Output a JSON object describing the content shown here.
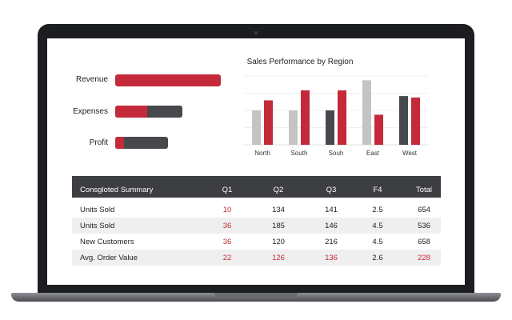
{
  "colors": {
    "accent": "#c52a3a",
    "dark": "#47484c",
    "light": "#c4c4c4",
    "header_bg": "#3d3e42"
  },
  "bar_metrics": [
    {
      "label": "Revenue",
      "red": 1.0,
      "dark": 0.0
    },
    {
      "label": "Expenses",
      "red": 0.48,
      "dark": 0.52
    },
    {
      "label": "Profit",
      "red": 0.17,
      "dark": 0.83
    }
  ],
  "chart_data": {
    "type": "bar",
    "title": "Sales Performance by Region",
    "categories": [
      "North",
      "South",
      "Souh",
      "East",
      "West"
    ],
    "series": [
      {
        "color": "#c4c4c4",
        "values": [
          24,
          24,
          null,
          45,
          null
        ]
      },
      {
        "color": "#47484c",
        "values": [
          null,
          null,
          24,
          null,
          34
        ]
      },
      {
        "color": "#c52a3a",
        "values": [
          31,
          38,
          38,
          21,
          33
        ]
      }
    ],
    "ylim": [
      0,
      48
    ]
  },
  "table": {
    "title": "Consgloted Summary",
    "columns": [
      "Q1",
      "Q2",
      "Q3",
      "F4",
      "Total"
    ],
    "rows": [
      {
        "label": "Units Sold",
        "values": [
          "10",
          "134",
          "141",
          "2.5",
          "654"
        ],
        "highlight": [
          0
        ]
      },
      {
        "label": "Units Sold",
        "values": [
          "36",
          "185",
          "146",
          "4.5",
          "536"
        ],
        "highlight": [
          0
        ]
      },
      {
        "label": "New Customers",
        "values": [
          "36",
          "120",
          "216",
          "4.5",
          "658"
        ],
        "highlight": [
          0
        ]
      },
      {
        "label": "Avg. Order Value",
        "values": [
          "22",
          "126",
          "136",
          "2.6",
          "228"
        ],
        "highlight": [
          0,
          1,
          2,
          4
        ]
      }
    ]
  }
}
